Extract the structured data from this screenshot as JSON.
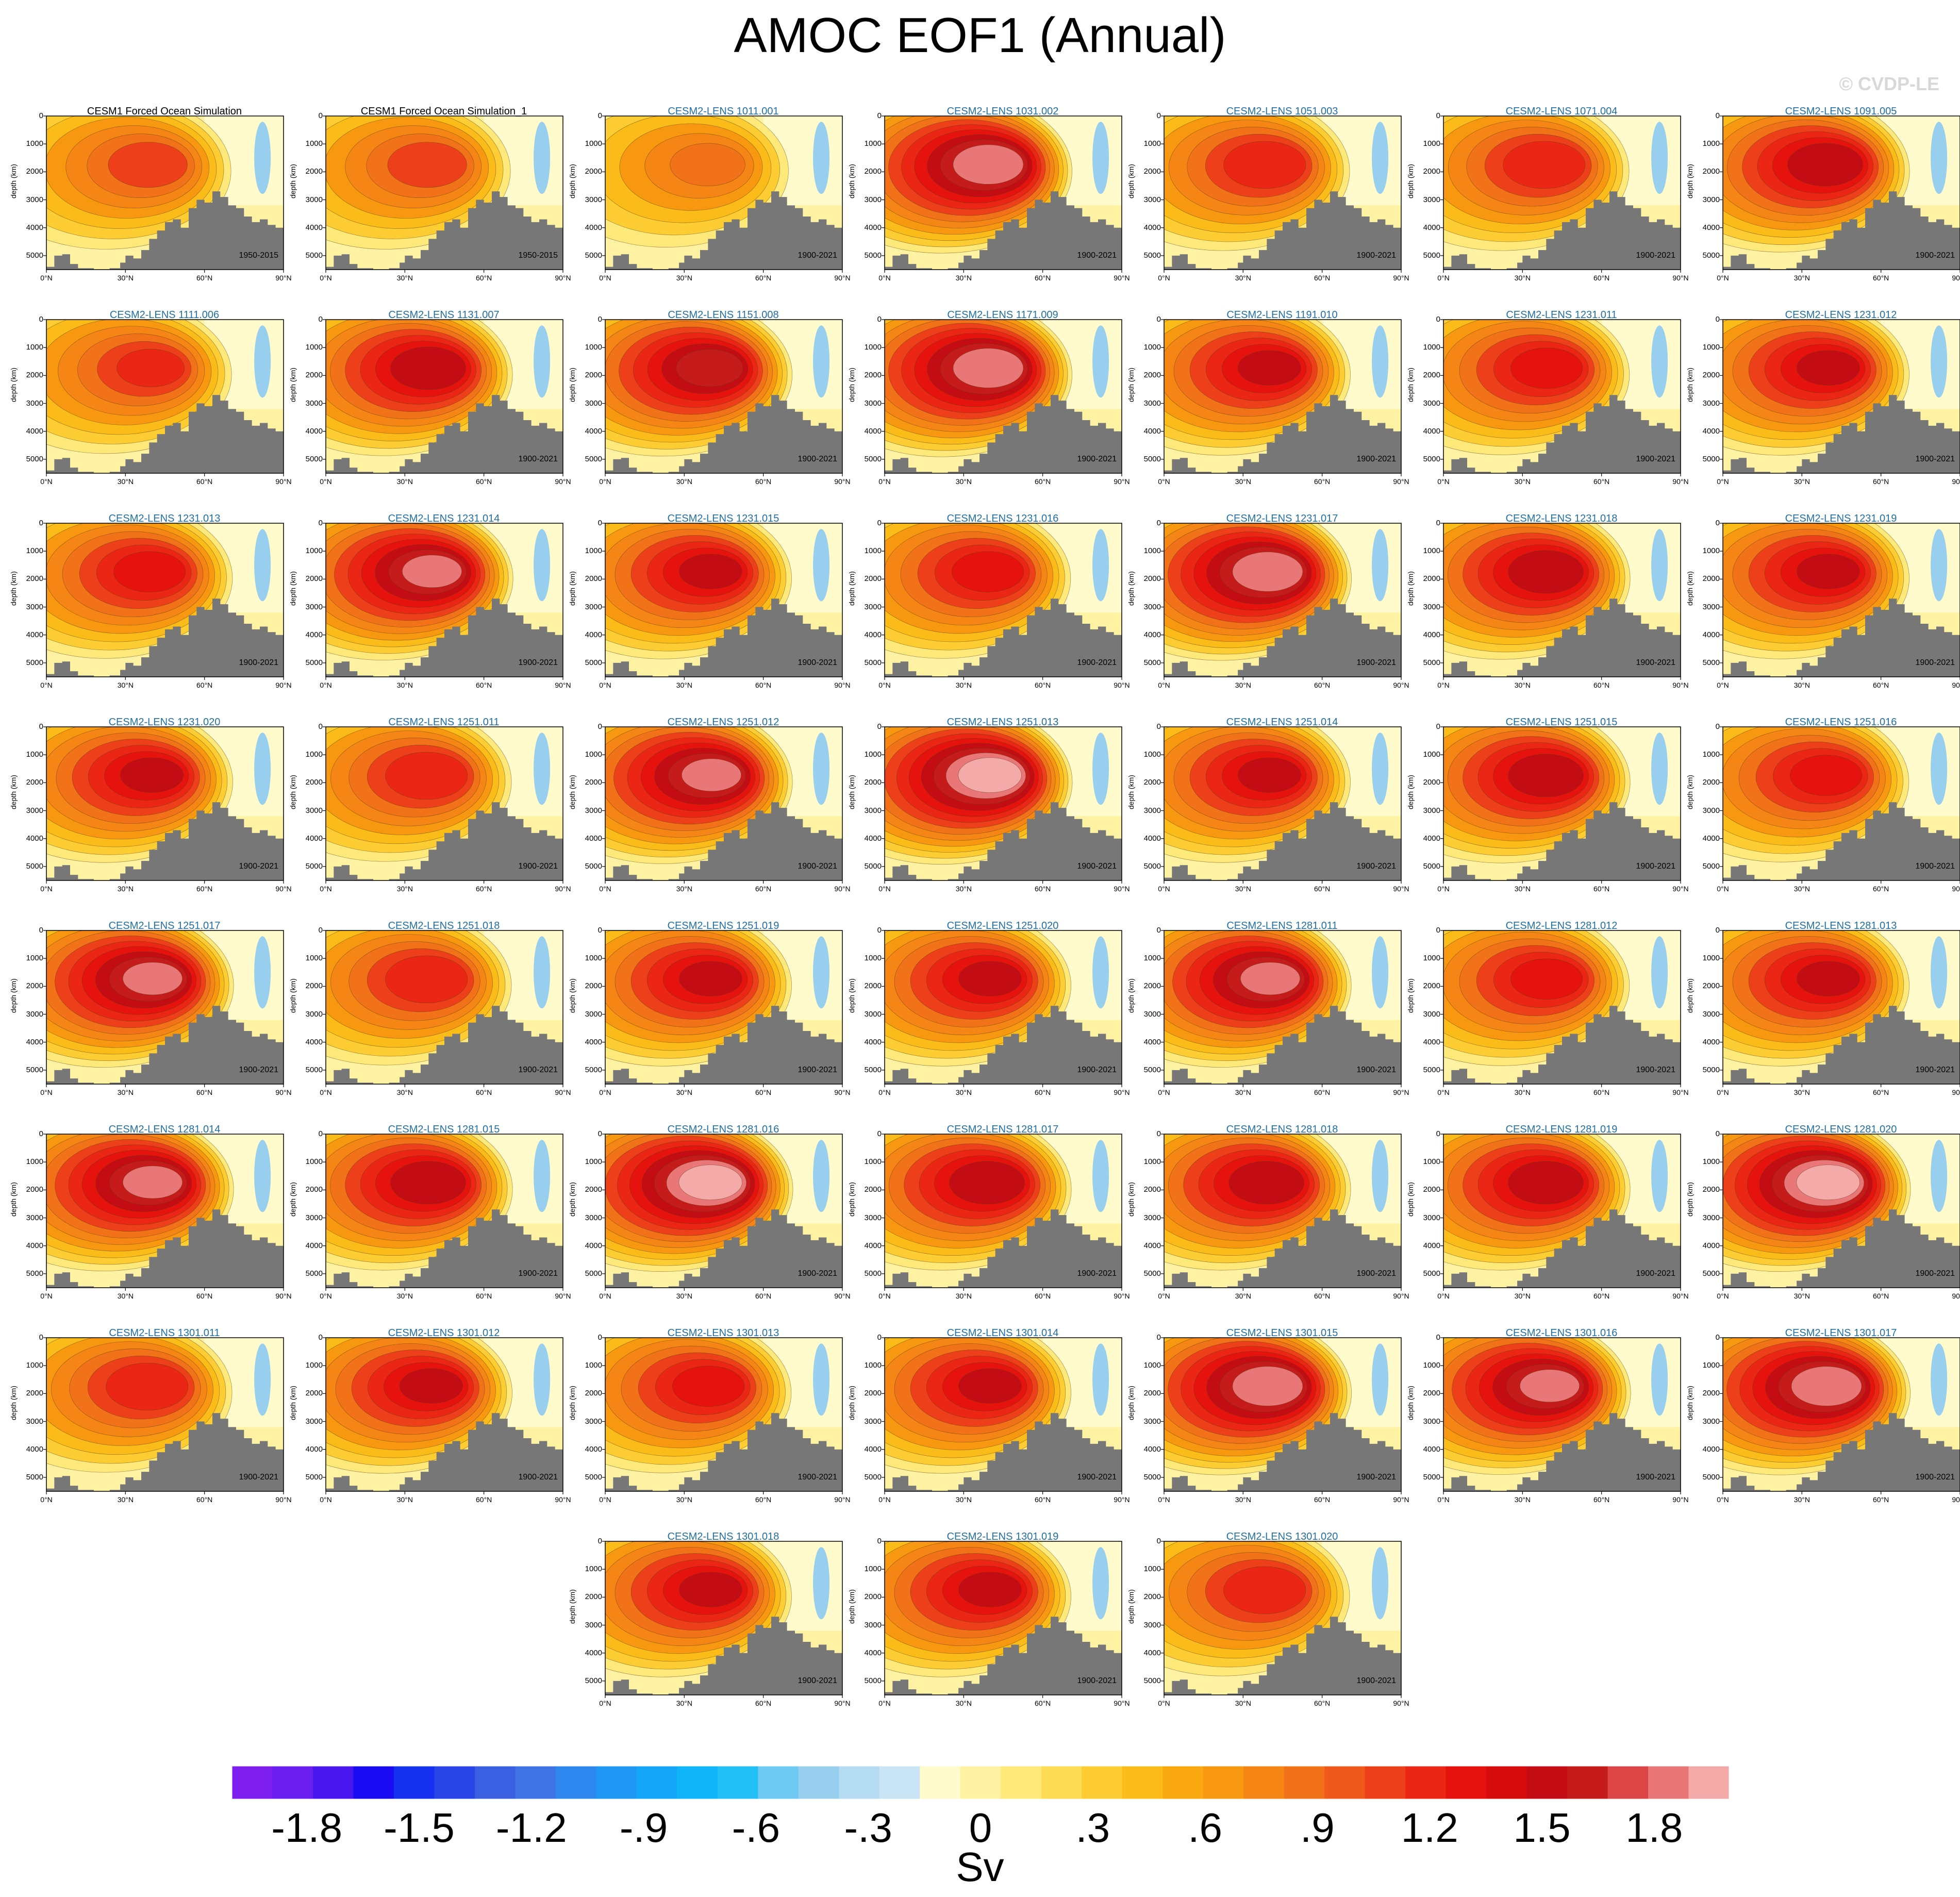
{
  "title": "AMOC EOF1 (Annual)",
  "credit": "© CVDP-LE",
  "units": "Sv",
  "chart_data": {
    "type": "heatmap",
    "xlabel": "",
    "ylabel": "depth (km)",
    "xticks": [
      "0°N",
      "30°N",
      "60°N",
      "90°N"
    ],
    "yticks": [
      "0",
      "1000",
      "2000",
      "3000",
      "4000",
      "5000"
    ],
    "xlim": [
      0,
      90
    ],
    "ylim": [
      5500,
      0
    ],
    "colorbar": {
      "labels": [
        "-1.8",
        "-1.5",
        "-1.2",
        "-.9",
        "-.6",
        "-.3",
        "0",
        ".3",
        ".6",
        ".9",
        "1.2",
        "1.5",
        "1.8"
      ],
      "colors": [
        "#7f1fef",
        "#6a1ff0",
        "#4a16f0",
        "#1a0cf2",
        "#1530ef",
        "#2a45e8",
        "#3a5fe0",
        "#3f74e6",
        "#2f88f0",
        "#1e97f5",
        "#13a6f8",
        "#10b4f8",
        "#22c0f6",
        "#6ecaf2",
        "#98cfee",
        "#b4dbf1",
        "#c9e4f4",
        "#fffbcc",
        "#fff3a3",
        "#ffe97a",
        "#fedd55",
        "#fdcd33",
        "#fbbc1a",
        "#f9a90f",
        "#f79810",
        "#f58615",
        "#f2721a",
        "#ef5a1c",
        "#ed401a",
        "#eb2614",
        "#e6120d",
        "#d60c0c",
        "#c40c14",
        "#c61b1b",
        "#dc4545",
        "#ea7777",
        "#f5aaaa"
      ],
      "lim": [
        -2,
        2
      ]
    },
    "panels": [
      {
        "title": "CESM1 Forced Ocean Simulation",
        "period": "1950-2015",
        "intensity": 1.1
      },
      {
        "title": "CESM1 Forced Ocean Simulation_1",
        "period": "1950-2015",
        "intensity": 1.1
      },
      {
        "title": "CESM2-LENS 1011.001",
        "period": "1900-2021",
        "intensity": 0.9
      },
      {
        "title": "CESM2-LENS 1031.002",
        "period": "1900-2021",
        "intensity": 1.9
      },
      {
        "title": "CESM2-LENS 1051.003",
        "period": "1900-2021",
        "intensity": 1.3
      },
      {
        "title": "CESM2-LENS 1071.004",
        "period": "1900-2021",
        "intensity": 1.3
      },
      {
        "title": "CESM2-LENS 1091.005",
        "period": "1900-2021",
        "intensity": 1.6
      },
      {
        "title": "CESM2-LENS 1111.006",
        "period": "",
        "intensity": 1.2
      },
      {
        "title": "CESM2-LENS 1131.007",
        "period": "1900-2021",
        "intensity": 1.6
      },
      {
        "title": "CESM2-LENS 1151.008",
        "period": "1900-2021",
        "intensity": 1.7
      },
      {
        "title": "CESM2-LENS 1171.009",
        "period": "1900-2021",
        "intensity": 1.9
      },
      {
        "title": "CESM2-LENS 1191.010",
        "period": "1900-2021",
        "intensity": 1.5
      },
      {
        "title": "CESM2-LENS 1231.011",
        "period": "1900-2021",
        "intensity": 1.4
      },
      {
        "title": "CESM2-LENS 1231.012",
        "period": "1900-2021",
        "intensity": 1.5
      },
      {
        "title": "CESM2-LENS 1231.013",
        "period": "1900-2021",
        "intensity": 1.4
      },
      {
        "title": "CESM2-LENS 1231.014",
        "period": "1900-2021",
        "intensity": 1.8
      },
      {
        "title": "CESM2-LENS 1231.015",
        "period": "1900-2021",
        "intensity": 1.5
      },
      {
        "title": "CESM2-LENS 1231.016",
        "period": "1900-2021",
        "intensity": 1.4
      },
      {
        "title": "CESM2-LENS 1231.017",
        "period": "1900-2021",
        "intensity": 1.9
      },
      {
        "title": "CESM2-LENS 1231.018",
        "period": "1900-2021",
        "intensity": 1.6
      },
      {
        "title": "CESM2-LENS 1231.019",
        "period": "1900-2021",
        "intensity": 1.5
      },
      {
        "title": "CESM2-LENS 1231.020",
        "period": "1900-2021",
        "intensity": 1.5
      },
      {
        "title": "CESM2-LENS 1251.011",
        "period": "1900-2021",
        "intensity": 1.3
      },
      {
        "title": "CESM2-LENS 1251.012",
        "period": "1900-2021",
        "intensity": 1.8
      },
      {
        "title": "CESM2-LENS 1251.013",
        "period": "1900-2021",
        "intensity": 2.0
      },
      {
        "title": "CESM2-LENS 1251.014",
        "period": "1900-2021",
        "intensity": 1.5
      },
      {
        "title": "CESM2-LENS 1251.015",
        "period": "1900-2021",
        "intensity": 1.6
      },
      {
        "title": "CESM2-LENS 1251.016",
        "period": "1900-2021",
        "intensity": 1.4
      },
      {
        "title": "CESM2-LENS 1251.017",
        "period": "1900-2021",
        "intensity": 1.8
      },
      {
        "title": "CESM2-LENS 1251.018",
        "period": "1900-2021",
        "intensity": 1.3
      },
      {
        "title": "CESM2-LENS 1251.019",
        "period": "1900-2021",
        "intensity": 1.5
      },
      {
        "title": "CESM2-LENS 1251.020",
        "period": "1900-2021",
        "intensity": 1.5
      },
      {
        "title": "CESM2-LENS 1281.011",
        "period": "1900-2021",
        "intensity": 1.8
      },
      {
        "title": "CESM2-LENS 1281.012",
        "period": "1900-2021",
        "intensity": 1.4
      },
      {
        "title": "CESM2-LENS 1281.013",
        "period": "1900-2021",
        "intensity": 1.5
      },
      {
        "title": "CESM2-LENS 1281.014",
        "period": "",
        "intensity": 1.8
      },
      {
        "title": "CESM2-LENS 1281.015",
        "period": "1900-2021",
        "intensity": 1.6
      },
      {
        "title": "CESM2-LENS 1281.016",
        "period": "1900-2021",
        "intensity": 2.0
      },
      {
        "title": "CESM2-LENS 1281.017",
        "period": "1900-2021",
        "intensity": 1.6
      },
      {
        "title": "CESM2-LENS 1281.018",
        "period": "1900-2021",
        "intensity": 1.6
      },
      {
        "title": "CESM2-LENS 1281.019",
        "period": "1900-2021",
        "intensity": 1.6
      },
      {
        "title": "CESM2-LENS 1281.020",
        "period": "1900-2021",
        "intensity": 2.0
      },
      {
        "title": "CESM2-LENS 1301.011",
        "period": "1900-2021",
        "intensity": 1.3
      },
      {
        "title": "CESM2-LENS 1301.012",
        "period": "1900-2021",
        "intensity": 1.5
      },
      {
        "title": "CESM2-LENS 1301.013",
        "period": "1900-2021",
        "intensity": 1.4
      },
      {
        "title": "CESM2-LENS 1301.014",
        "period": "1900-2021",
        "intensity": 1.5
      },
      {
        "title": "CESM2-LENS 1301.015",
        "period": "1900-2021",
        "intensity": 1.9
      },
      {
        "title": "CESM2-LENS 1301.016",
        "period": "1900-2021",
        "intensity": 1.8
      },
      {
        "title": "CESM2-LENS 1301.017",
        "period": "1900-2021",
        "intensity": 1.9
      },
      {
        "title": "CESM2-LENS 1301.018",
        "period": "1900-2021",
        "intensity": 1.5
      },
      {
        "title": "CESM2-LENS 1301.019",
        "period": "1900-2021",
        "intensity": 1.5
      },
      {
        "title": "CESM2-LENS 1301.020",
        "period": "1900-2021",
        "intensity": 1.3
      }
    ]
  }
}
